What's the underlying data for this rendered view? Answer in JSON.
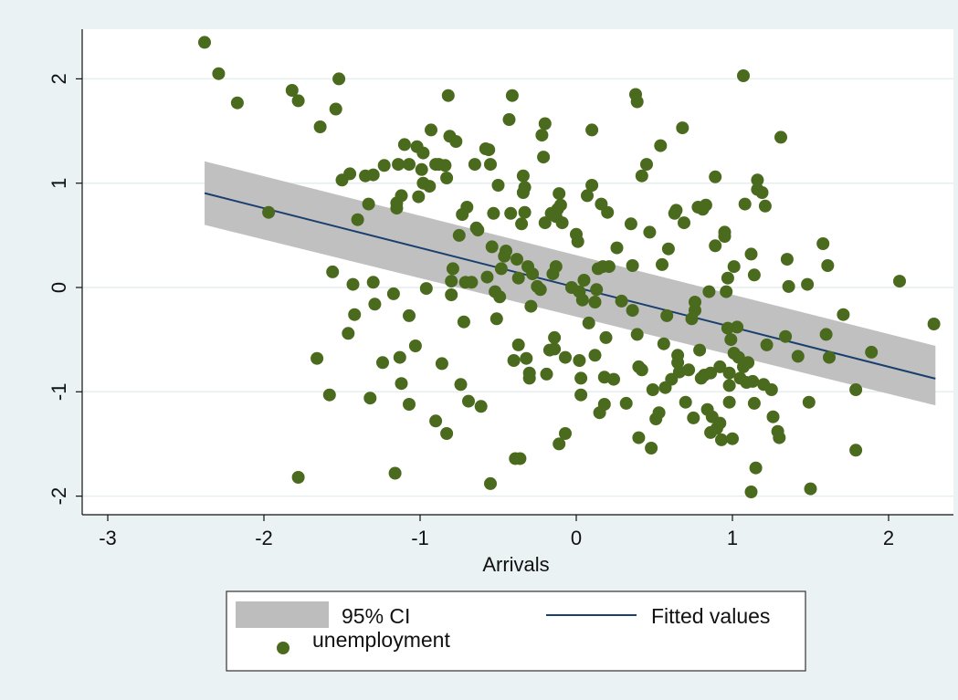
{
  "chart_data": {
    "type": "scatter",
    "xlabel": "Arrivals",
    "ylabel": "",
    "xlim": [
      -3.2,
      2.3
    ],
    "ylim": [
      -2.15,
      2.5
    ],
    "xticks": [
      "-3",
      "-2",
      "-1",
      "0",
      "1",
      "2"
    ],
    "yticks": [
      "-2",
      "-1",
      "0",
      "1",
      "2"
    ],
    "grid": "horizontal",
    "legend_placement": "bottom",
    "legend": {
      "ci_label": "95% CI",
      "fit_label": "Fitted values",
      "points_label": "unemployment"
    },
    "colors": {
      "points": "#4a6a1e",
      "fit_line": "#1a3f6f",
      "ci_band": "#bdbdbd",
      "plot_background": "#ffffff",
      "outer_background": "#eaf2f3"
    },
    "fitted": {
      "x_range": [
        -2.38,
        2.3
      ],
      "intercept": 0.0,
      "slope": -0.38,
      "ci_at_start": [
        0.6,
        1.21
      ],
      "ci_at_end": [
        -1.13,
        -0.56
      ]
    },
    "points": [
      [
        -2.38,
        2.35
      ],
      [
        -2.29,
        2.05
      ],
      [
        -2.17,
        1.77
      ],
      [
        -1.97,
        0.72
      ],
      [
        -1.82,
        1.89
      ],
      [
        -1.78,
        1.79
      ],
      [
        -1.78,
        -1.82
      ],
      [
        -1.66,
        -0.68
      ],
      [
        -1.64,
        1.54
      ],
      [
        -1.58,
        -1.03
      ],
      [
        -1.56,
        0.15
      ],
      [
        -1.54,
        1.71
      ],
      [
        -1.52,
        2.0
      ],
      [
        -1.5,
        1.03
      ],
      [
        -1.45,
        1.09
      ],
      [
        -1.46,
        -0.44
      ],
      [
        -1.43,
        0.03
      ],
      [
        -1.42,
        -0.26
      ],
      [
        -1.4,
        0.65
      ],
      [
        -1.35,
        1.07
      ],
      [
        -1.33,
        0.8
      ],
      [
        -1.32,
        -1.06
      ],
      [
        -1.3,
        1.08
      ],
      [
        -1.3,
        0.05
      ],
      [
        -1.29,
        -0.16
      ],
      [
        -1.24,
        -0.72
      ],
      [
        -1.23,
        1.17
      ],
      [
        -1.17,
        -0.06
      ],
      [
        -1.16,
        -1.78
      ],
      [
        -1.15,
        0.81
      ],
      [
        -1.15,
        0.76
      ],
      [
        -1.14,
        1.18
      ],
      [
        -1.13,
        -0.67
      ],
      [
        -1.12,
        0.88
      ],
      [
        -1.12,
        -0.92
      ],
      [
        -1.1,
        1.37
      ],
      [
        -1.07,
        1.18
      ],
      [
        -1.07,
        -1.12
      ],
      [
        -1.07,
        -0.27
      ],
      [
        -1.03,
        -0.56
      ],
      [
        -1.02,
        1.35
      ],
      [
        -1.01,
        0.87
      ],
      [
        -0.99,
        1.13
      ],
      [
        -0.98,
        1.29
      ],
      [
        -0.98,
        1.0
      ],
      [
        -0.96,
        -0.01
      ],
      [
        -0.94,
        0.97
      ],
      [
        -0.93,
        1.51
      ],
      [
        -0.9,
        1.18
      ],
      [
        -0.9,
        -1.28
      ],
      [
        -0.88,
        1.18
      ],
      [
        -0.86,
        -0.73
      ],
      [
        -0.84,
        1.17
      ],
      [
        -0.83,
        1.05
      ],
      [
        -0.83,
        -1.4
      ],
      [
        -0.82,
        1.84
      ],
      [
        -0.81,
        1.45
      ],
      [
        -0.8,
        -0.07
      ],
      [
        -0.8,
        0.06
      ],
      [
        -0.79,
        0.18
      ],
      [
        -0.77,
        1.4
      ],
      [
        -0.75,
        0.5
      ],
      [
        -0.74,
        -0.93
      ],
      [
        -0.73,
        0.7
      ],
      [
        -0.72,
        -0.33
      ],
      [
        -0.71,
        0.05
      ],
      [
        -0.7,
        0.77
      ],
      [
        -0.69,
        -1.09
      ],
      [
        -0.67,
        0.05
      ],
      [
        -0.65,
        1.18
      ],
      [
        -0.64,
        0.57
      ],
      [
        -0.63,
        0.55
      ],
      [
        -0.61,
        -1.14
      ],
      [
        -0.58,
        1.33
      ],
      [
        -0.57,
        0.1
      ],
      [
        -0.56,
        1.32
      ],
      [
        -0.55,
        1.18
      ],
      [
        -0.55,
        -1.88
      ],
      [
        -0.54,
        0.39
      ],
      [
        -0.53,
        0.71
      ],
      [
        -0.52,
        -0.04
      ],
      [
        -0.51,
        -0.3
      ],
      [
        -0.5,
        0.98
      ],
      [
        -0.49,
        -0.09
      ],
      [
        -0.48,
        0.18
      ],
      [
        -0.46,
        0.3
      ],
      [
        -0.45,
        0.35
      ],
      [
        -0.43,
        1.61
      ],
      [
        -0.42,
        0.71
      ],
      [
        -0.41,
        1.84
      ],
      [
        -0.4,
        -0.7
      ],
      [
        -0.39,
        -1.64
      ],
      [
        -0.38,
        0.27
      ],
      [
        -0.37,
        0.09
      ],
      [
        -0.37,
        -0.55
      ],
      [
        -0.36,
        -1.64
      ],
      [
        -0.35,
        0.61
      ],
      [
        -0.34,
        0.91
      ],
      [
        -0.34,
        1.07
      ],
      [
        -0.33,
        0.96
      ],
      [
        -0.33,
        0.72
      ],
      [
        -0.32,
        -0.68
      ],
      [
        -0.31,
        0.2
      ],
      [
        -0.3,
        -0.82
      ],
      [
        -0.3,
        -0.87
      ],
      [
        -0.29,
        -0.18
      ],
      [
        -0.28,
        0.13
      ],
      [
        -0.25,
        0.01
      ],
      [
        -0.23,
        -0.02
      ],
      [
        -0.22,
        1.46
      ],
      [
        -0.21,
        1.25
      ],
      [
        -0.2,
        1.57
      ],
      [
        -0.2,
        0.62
      ],
      [
        -0.19,
        -0.83
      ],
      [
        -0.17,
        -0.6
      ],
      [
        -0.16,
        0.71
      ],
      [
        -0.15,
        0.13
      ],
      [
        -0.14,
        -0.48
      ],
      [
        -0.14,
        -0.59
      ],
      [
        -0.13,
        0.68
      ],
      [
        -0.13,
        0.2
      ],
      [
        -0.12,
        0.75
      ],
      [
        -0.11,
        0.9
      ],
      [
        -0.11,
        -1.5
      ],
      [
        -0.1,
        0.79
      ],
      [
        -0.09,
        0.62
      ],
      [
        -0.07,
        -0.67
      ],
      [
        -0.07,
        -1.4
      ],
      [
        -0.03,
        0.0
      ],
      [
        0.0,
        0.51
      ],
      [
        0.01,
        0.44
      ],
      [
        0.02,
        -0.04
      ],
      [
        0.02,
        -0.7
      ],
      [
        0.03,
        -0.87
      ],
      [
        0.03,
        -1.03
      ],
      [
        0.04,
        -0.12
      ],
      [
        0.05,
        0.07
      ],
      [
        0.07,
        0.88
      ],
      [
        0.08,
        -0.34
      ],
      [
        0.1,
        1.51
      ],
      [
        0.1,
        0.98
      ],
      [
        0.12,
        -0.14
      ],
      [
        0.12,
        -0.65
      ],
      [
        0.13,
        -0.02
      ],
      [
        0.14,
        0.18
      ],
      [
        0.15,
        -1.2
      ],
      [
        0.16,
        0.8
      ],
      [
        0.17,
        0.2
      ],
      [
        0.18,
        -0.86
      ],
      [
        0.18,
        -1.12
      ],
      [
        0.19,
        -0.48
      ],
      [
        0.2,
        0.72
      ],
      [
        0.21,
        0.2
      ],
      [
        0.24,
        -0.88
      ],
      [
        0.26,
        0.38
      ],
      [
        0.29,
        -0.13
      ],
      [
        0.32,
        -1.11
      ],
      [
        0.35,
        0.61
      ],
      [
        0.36,
        0.21
      ],
      [
        0.36,
        -0.22
      ],
      [
        0.38,
        1.85
      ],
      [
        0.39,
        1.78
      ],
      [
        0.39,
        -0.45
      ],
      [
        0.4,
        -0.76
      ],
      [
        0.4,
        -1.44
      ],
      [
        0.42,
        1.07
      ],
      [
        0.42,
        -0.79
      ],
      [
        0.45,
        1.18
      ],
      [
        0.47,
        0.53
      ],
      [
        0.48,
        -1.54
      ],
      [
        0.49,
        -0.98
      ],
      [
        0.51,
        -1.26
      ],
      [
        0.53,
        -1.2
      ],
      [
        0.54,
        1.36
      ],
      [
        0.55,
        0.22
      ],
      [
        0.56,
        -0.54
      ],
      [
        0.57,
        -0.96
      ],
      [
        0.58,
        -0.27
      ],
      [
        0.59,
        0.37
      ],
      [
        0.61,
        -0.88
      ],
      [
        0.63,
        0.71
      ],
      [
        0.64,
        0.74
      ],
      [
        0.65,
        -0.65
      ],
      [
        0.65,
        -0.72
      ],
      [
        0.66,
        -0.81
      ],
      [
        0.68,
        1.53
      ],
      [
        0.69,
        0.62
      ],
      [
        0.7,
        -1.1
      ],
      [
        0.72,
        -0.79
      ],
      [
        0.74,
        -0.3
      ],
      [
        0.75,
        -1.25
      ],
      [
        0.76,
        -0.14
      ],
      [
        0.76,
        -0.22
      ],
      [
        0.78,
        0.77
      ],
      [
        0.79,
        -0.6
      ],
      [
        0.8,
        -0.87
      ],
      [
        0.81,
        0.75
      ],
      [
        0.82,
        -0.84
      ],
      [
        0.83,
        0.79
      ],
      [
        0.84,
        -1.17
      ],
      [
        0.85,
        -0.04
      ],
      [
        0.86,
        -0.82
      ],
      [
        0.86,
        -1.39
      ],
      [
        0.87,
        -1.24
      ],
      [
        0.89,
        1.06
      ],
      [
        0.89,
        0.4
      ],
      [
        0.9,
        -1.35
      ],
      [
        0.92,
        -1.3
      ],
      [
        0.92,
        -0.76
      ],
      [
        0.93,
        -1.46
      ],
      [
        0.95,
        0.53
      ],
      [
        0.95,
        0.49
      ],
      [
        0.96,
        -0.04
      ],
      [
        0.97,
        0.09
      ],
      [
        0.97,
        -0.39
      ],
      [
        0.98,
        -0.82
      ],
      [
        0.98,
        -0.94
      ],
      [
        0.98,
        -1.1
      ],
      [
        0.99,
        -0.5
      ],
      [
        1.0,
        -1.45
      ],
      [
        1.01,
        0.2
      ],
      [
        1.01,
        -0.63
      ],
      [
        1.03,
        -0.38
      ],
      [
        1.04,
        -0.67
      ],
      [
        1.05,
        -0.87
      ],
      [
        1.07,
        2.03
      ],
      [
        1.07,
        -0.76
      ],
      [
        1.08,
        0.8
      ],
      [
        1.09,
        -0.91
      ],
      [
        1.1,
        -0.72
      ],
      [
        1.12,
        0.32
      ],
      [
        1.12,
        -1.96
      ],
      [
        1.13,
        -0.9
      ],
      [
        1.14,
        0.12
      ],
      [
        1.14,
        -1.11
      ],
      [
        1.15,
        -1.73
      ],
      [
        1.16,
        1.03
      ],
      [
        1.16,
        0.94
      ],
      [
        1.19,
        0.91
      ],
      [
        1.2,
        -0.93
      ],
      [
        1.21,
        0.78
      ],
      [
        1.22,
        -0.55
      ],
      [
        1.25,
        -0.98
      ],
      [
        1.26,
        -1.24
      ],
      [
        1.29,
        -1.38
      ],
      [
        1.3,
        -1.44
      ],
      [
        1.31,
        1.44
      ],
      [
        1.34,
        -0.47
      ],
      [
        1.35,
        0.27
      ],
      [
        1.36,
        0.01
      ],
      [
        1.42,
        -0.66
      ],
      [
        1.48,
        0.03
      ],
      [
        1.49,
        -1.1
      ],
      [
        1.5,
        -1.93
      ],
      [
        1.58,
        0.42
      ],
      [
        1.6,
        -0.45
      ],
      [
        1.61,
        0.21
      ],
      [
        1.62,
        -0.67
      ],
      [
        1.71,
        -0.26
      ],
      [
        1.79,
        -0.98
      ],
      [
        1.79,
        -1.56
      ],
      [
        1.89,
        -0.62
      ],
      [
        2.07,
        0.06
      ],
      [
        2.29,
        -0.35
      ]
    ]
  }
}
